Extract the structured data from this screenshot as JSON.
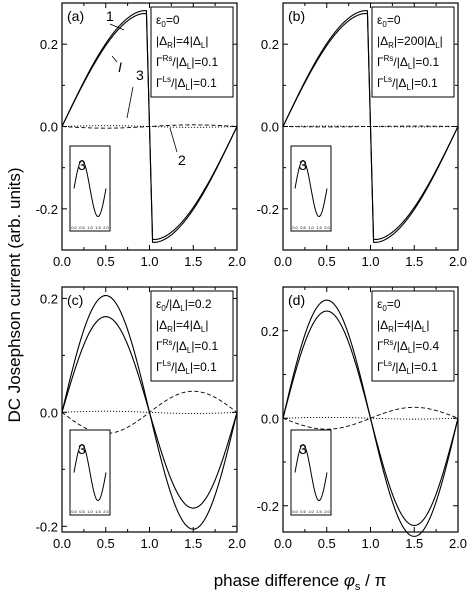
{
  "figure": {
    "ylabel": "DC Josephson current (arb. units)",
    "xlabel_prefix": "phase difference ",
    "xlabel_symbol": "φ",
    "xlabel_sub": "s",
    "xlabel_suffix": " / π"
  },
  "chart_data": [
    {
      "type": "line",
      "panel_label": "(a)",
      "xlim": [
        0,
        2
      ],
      "ylim": [
        -0.3,
        0.3
      ],
      "xticks": [
        "0.0",
        "0.5",
        "1.0",
        "1.5",
        "2.0"
      ],
      "yticks": [
        {
          "v": 0.2,
          "label": "0.2"
        },
        {
          "v": 0.0,
          "label": "0.0"
        },
        {
          "v": -0.2,
          "label": "-0.2"
        }
      ],
      "params": [
        {
          "pre": "ε",
          "sub": "0",
          "post": "=0"
        },
        {
          "pre": "|Δ",
          "sub": "R",
          "post": "|=4|Δ",
          "sub2": "L",
          "post2": "|"
        },
        {
          "pre": "Γ",
          "sup": "Rs",
          "post": "/|Δ",
          "sub2": "L",
          "post2": "|=0.1"
        },
        {
          "pre": "Γ",
          "sup": "Ls",
          "post": "/|Δ",
          "sub2": "L",
          "post2": "|=0.1"
        }
      ],
      "curve_labels": [
        "1",
        "I",
        "3",
        "2"
      ],
      "inset_label": "3",
      "series": [
        {
          "kind": "sawtooth",
          "amplitude": 0.285,
          "style": "solid",
          "x": [
            0,
            0.5,
            0.9,
            0.96,
            1.0,
            1.04,
            1.1,
            1.5,
            2.0
          ],
          "values": [
            0,
            0.2,
            0.28,
            0.28,
            0,
            -0.28,
            -0.28,
            -0.2,
            0
          ]
        },
        {
          "kind": "sawtooth",
          "amplitude": 0.278,
          "style": "solid",
          "x": [
            0,
            0.5,
            0.9,
            0.96,
            1.0,
            1.04,
            1.1,
            1.5,
            2.0
          ],
          "values": [
            0,
            0.196,
            0.275,
            0.275,
            0,
            -0.275,
            -0.275,
            -0.196,
            0
          ]
        },
        {
          "kind": "sine",
          "amplitude": -0.004,
          "style": "dashed",
          "x": [
            0,
            0.5,
            1.0,
            1.5,
            2.0
          ],
          "values": [
            0,
            -0.004,
            0,
            0.004,
            0
          ]
        },
        {
          "kind": "sine",
          "amplitude": 0.002,
          "style": "dotted",
          "x": [
            0,
            0.5,
            1.0,
            1.5,
            2.0
          ],
          "values": [
            0,
            0.002,
            0,
            -0.002,
            0
          ]
        }
      ]
    },
    {
      "type": "line",
      "panel_label": "(b)",
      "xlim": [
        0,
        2
      ],
      "ylim": [
        -0.3,
        0.3
      ],
      "xticks": [
        "0.0",
        "0.5",
        "1.0",
        "1.5",
        "2.0"
      ],
      "yticks": [
        {
          "v": 0.2,
          "label": "0.2"
        },
        {
          "v": 0.0,
          "label": "0.0"
        },
        {
          "v": -0.2,
          "label": "-0.2"
        }
      ],
      "params": [
        {
          "pre": "ε",
          "sub": "0",
          "post": "=0"
        },
        {
          "pre": "|Δ",
          "sub": "R",
          "post": "|=200|Δ",
          "sub2": "L",
          "post2": "|"
        },
        {
          "pre": "Γ",
          "sup": "Rs",
          "post": "/|Δ",
          "sub2": "L",
          "post2": "|=0.1"
        },
        {
          "pre": "Γ",
          "sup": "Ls",
          "post": "/|Δ",
          "sub2": "L",
          "post2": "|=0.1"
        }
      ],
      "curve_labels": [],
      "inset_label": "3",
      "series": [
        {
          "kind": "sawtooth",
          "amplitude": 0.285,
          "style": "solid",
          "x": [
            0,
            0.5,
            0.9,
            0.96,
            1.0,
            1.04,
            1.1,
            1.5,
            2.0
          ],
          "values": [
            0,
            0.2,
            0.28,
            0.28,
            0,
            -0.28,
            -0.28,
            -0.2,
            0
          ]
        },
        {
          "kind": "sawtooth",
          "amplitude": 0.278,
          "style": "solid",
          "x": [
            0,
            0.5,
            0.9,
            0.96,
            1.0,
            1.04,
            1.1,
            1.5,
            2.0
          ],
          "values": [
            0,
            0.196,
            0.275,
            0.275,
            0,
            -0.275,
            -0.275,
            -0.196,
            0
          ]
        },
        {
          "kind": "sine",
          "amplitude": -0.001,
          "style": "dashed",
          "x": [
            0,
            0.5,
            1.0,
            1.5,
            2.0
          ],
          "values": [
            0,
            -0.001,
            0,
            0.001,
            0
          ]
        },
        {
          "kind": "sine",
          "amplitude": 0.001,
          "style": "dotted",
          "x": [
            0,
            0.5,
            1.0,
            1.5,
            2.0
          ],
          "values": [
            0,
            0.001,
            0,
            -0.001,
            0
          ]
        }
      ]
    },
    {
      "type": "line",
      "panel_label": "(c)",
      "xlim": [
        0,
        2
      ],
      "ylim": [
        -0.21,
        0.22
      ],
      "xticks": [
        "0.0",
        "0.5",
        "1.0",
        "1.5",
        "2.0"
      ],
      "yticks": [
        {
          "v": 0.2,
          "label": "0.2"
        },
        {
          "v": 0.0,
          "label": "0.0"
        },
        {
          "v": -0.2,
          "label": "-0.2"
        }
      ],
      "params": [
        {
          "pre": "ε",
          "sub": "0",
          "post": "/|Δ",
          "sub2": "L",
          "post2": "|=0.2"
        },
        {
          "pre": "|Δ",
          "sub": "R",
          "post": "|=4|Δ",
          "sub2": "L",
          "post2": "|"
        },
        {
          "pre": "Γ",
          "sup": "Rs",
          "post": "/|Δ",
          "sub2": "L",
          "post2": "|=0.1"
        },
        {
          "pre": "Γ",
          "sup": "Ls",
          "post": "/|Δ",
          "sub2": "L",
          "post2": "|=0.1"
        }
      ],
      "curve_labels": [],
      "inset_label": "3",
      "series": [
        {
          "kind": "sine",
          "amplitude": 0.205,
          "style": "solid",
          "x": [
            0,
            0.5,
            1.0,
            1.5,
            2.0
          ],
          "values": [
            0,
            0.205,
            0,
            -0.205,
            0
          ]
        },
        {
          "kind": "sine",
          "amplitude": 0.168,
          "style": "solid",
          "x": [
            0,
            0.5,
            1.0,
            1.5,
            2.0
          ],
          "values": [
            0,
            0.168,
            0,
            -0.168,
            0
          ]
        },
        {
          "kind": "sine",
          "amplitude": -0.037,
          "style": "dashed",
          "x": [
            0,
            0.5,
            1.0,
            1.5,
            2.0
          ],
          "values": [
            0,
            -0.037,
            0,
            0.037,
            0
          ]
        },
        {
          "kind": "sine",
          "amplitude": 0.002,
          "style": "dotted",
          "x": [
            0,
            0.5,
            1.0,
            1.5,
            2.0
          ],
          "values": [
            0,
            0.002,
            0,
            -0.002,
            0
          ]
        }
      ]
    },
    {
      "type": "line",
      "panel_label": "(d)",
      "xlim": [
        0,
        2
      ],
      "ylim": [
        -0.26,
        0.3
      ],
      "xticks": [
        "0.0",
        "0.5",
        "1.0",
        "1.5",
        "2.0"
      ],
      "yticks": [
        {
          "v": 0.2,
          "label": "0.2"
        },
        {
          "v": 0.0,
          "label": "0.0"
        },
        {
          "v": -0.2,
          "label": "-0.2"
        }
      ],
      "params": [
        {
          "pre": "ε",
          "sub": "0",
          "post": "=0"
        },
        {
          "pre": "|Δ",
          "sub": "R",
          "post": "|=4|Δ",
          "sub2": "L",
          "post2": "|"
        },
        {
          "pre": "Γ",
          "sup": "Rs",
          "post": "/|Δ",
          "sub2": "L",
          "post2": "|=0.4"
        },
        {
          "pre": "Γ",
          "sup": "Ls",
          "post": "/|Δ",
          "sub2": "L",
          "post2": "|=0.1"
        }
      ],
      "curve_labels": [],
      "inset_label": "3",
      "series": [
        {
          "kind": "sine",
          "amplitude": 0.27,
          "style": "solid",
          "x": [
            0,
            0.5,
            1.0,
            1.5,
            2.0
          ],
          "values": [
            0,
            0.27,
            0,
            -0.27,
            0
          ]
        },
        {
          "kind": "sine",
          "amplitude": 0.245,
          "style": "solid",
          "x": [
            0,
            0.5,
            1.0,
            1.5,
            2.0
          ],
          "values": [
            0,
            0.245,
            0,
            -0.245,
            0
          ]
        },
        {
          "kind": "sine",
          "amplitude": -0.025,
          "style": "dashed",
          "x": [
            0,
            0.5,
            1.0,
            1.5,
            2.0
          ],
          "values": [
            0,
            -0.025,
            0,
            0.025,
            0
          ]
        },
        {
          "kind": "sine",
          "amplitude": 0.002,
          "style": "dotted",
          "x": [
            0,
            0.5,
            1.0,
            1.5,
            2.0
          ],
          "values": [
            0,
            0.002,
            0,
            -0.002,
            0
          ]
        }
      ]
    }
  ]
}
